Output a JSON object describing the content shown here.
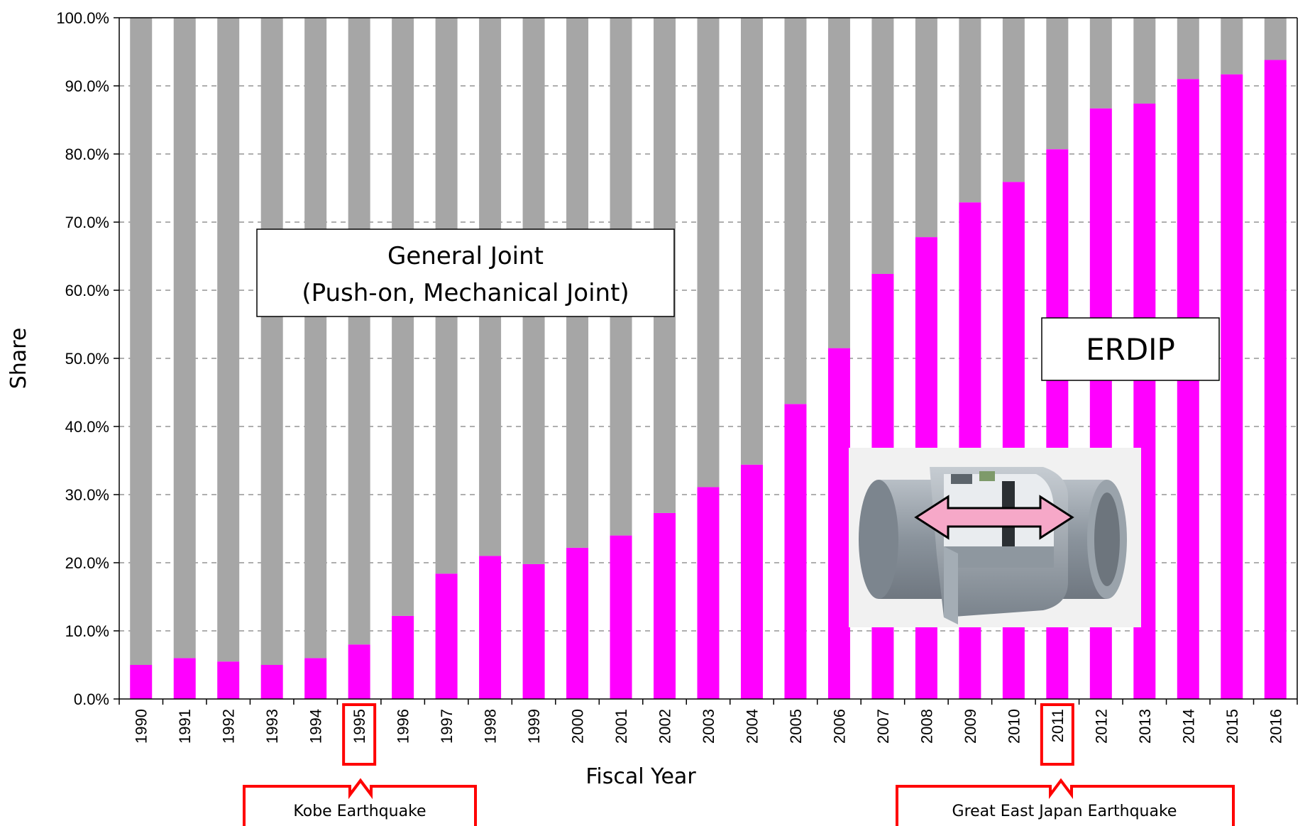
{
  "chart_data": {
    "type": "bar",
    "stacked": true,
    "xlabel": "Fiscal Year",
    "ylabel": "Share",
    "ylim": [
      0,
      100
    ],
    "y_tick_format": "percent-1-decimal",
    "y_ticks": [
      "0.0%",
      "10.0%",
      "20.0%",
      "30.0%",
      "40.0%",
      "50.0%",
      "60.0%",
      "70.0%",
      "80.0%",
      "90.0%",
      "100.0%"
    ],
    "grid": "horizontal-dashed",
    "categories": [
      "1990",
      "1991",
      "1992",
      "1993",
      "1994",
      "1995",
      "1996",
      "1997",
      "1998",
      "1999",
      "2000",
      "2001",
      "2002",
      "2003",
      "2004",
      "2005",
      "2006",
      "2007",
      "2008",
      "2009",
      "2010",
      "2011",
      "2012",
      "2013",
      "2014",
      "2015",
      "2016"
    ],
    "series": [
      {
        "key": "erdip",
        "color": "#ff00ff",
        "values": [
          5.0,
          6.0,
          5.5,
          5.0,
          6.0,
          8.0,
          12.2,
          18.4,
          21.0,
          19.8,
          22.2,
          24.0,
          27.3,
          31.1,
          34.4,
          43.3,
          51.5,
          62.4,
          67.8,
          72.9,
          75.9,
          80.7,
          86.7,
          87.4,
          91.0,
          91.7,
          93.8
        ]
      },
      {
        "key": "general",
        "color": "#a6a6a6",
        "values": [
          95.0,
          94.0,
          94.5,
          95.0,
          94.0,
          92.0,
          87.8,
          81.6,
          79.0,
          80.2,
          77.8,
          76.0,
          72.7,
          68.9,
          65.6,
          56.7,
          48.5,
          37.6,
          32.2,
          27.1,
          24.1,
          19.3,
          13.3,
          12.6,
          9.0,
          8.3,
          6.2
        ]
      }
    ],
    "annotations": {
      "general_joint_line1": "General Joint",
      "general_joint_line2": "(Push-on, Mechanical Joint)",
      "erdip_label": "ERDIP",
      "highlighted_years": [
        "1995",
        "2011"
      ],
      "highlight_color": "#ff0000",
      "callouts": [
        {
          "year": "1995",
          "text": "Kobe Earthquake"
        },
        {
          "year": "2011",
          "text": "Great East Japan Earthquake"
        }
      ]
    }
  }
}
